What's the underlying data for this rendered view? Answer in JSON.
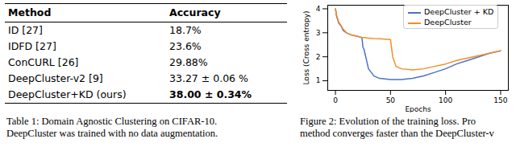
{
  "table": {
    "header": [
      "Method",
      "Accuracy"
    ],
    "rows": [
      [
        "ID [27]",
        "18.7%"
      ],
      [
        "IDFD [27]",
        "23.6%"
      ],
      [
        "ConCURL [26]",
        "29.88%"
      ],
      [
        "DeepCluster-v2 [9]",
        "33.27 ± 0.06 %"
      ],
      [
        "DeepCluster+KD (ours)",
        "38.00 ± 0.34%"
      ]
    ],
    "caption": [
      "Table 1: Domain Agnostic Clustering on CIFAR-10.",
      "DeepCluster was trained with no data augmentation."
    ]
  },
  "figure_caption": [
    "Figure 2: Evolution of the training loss. Pro",
    "method converges faster than the DeepCluster-v"
  ],
  "chart_data": {
    "type": "line",
    "x_label": "Epochs",
    "y_label": "Loss (Cross entropy)",
    "xlim": [
      -7,
      157
    ],
    "ylim": [
      0.6,
      4.15
    ],
    "xticks": [
      0,
      50,
      100,
      150
    ],
    "yticks": [
      1,
      2,
      3,
      4
    ],
    "legend": "upper right",
    "x": [
      0,
      1,
      3,
      5,
      7,
      10,
      15,
      20,
      24,
      25,
      26,
      30,
      35,
      40,
      50,
      52,
      55,
      60,
      70,
      80,
      90,
      100,
      110,
      120,
      130,
      140,
      150
    ],
    "series": [
      {
        "name": "DeepCluster + KD",
        "color": "#4c72c4",
        "values": [
          4.0,
          3.7,
          3.4,
          3.3,
          3.1,
          3.0,
          2.9,
          2.85,
          2.8,
          2.4,
          2.3,
          1.5,
          1.2,
          1.1,
          1.05,
          1.05,
          1.05,
          1.05,
          1.1,
          1.2,
          1.35,
          1.5,
          1.7,
          1.85,
          2.0,
          2.15,
          2.25
        ]
      },
      {
        "name": "DeepCluster",
        "color": "#f28e2b",
        "values": [
          4.0,
          3.75,
          3.45,
          3.3,
          3.15,
          3.0,
          2.9,
          2.85,
          2.8,
          2.8,
          2.8,
          2.78,
          2.76,
          2.75,
          2.72,
          2.0,
          1.6,
          1.5,
          1.45,
          1.5,
          1.6,
          1.7,
          1.85,
          1.95,
          2.05,
          2.15,
          2.25
        ]
      }
    ]
  }
}
